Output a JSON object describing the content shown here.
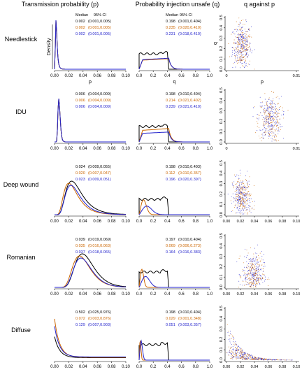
{
  "column_titles": [
    "Transmission probability (p)",
    "Probability injection unsafe (q)",
    "q against p"
  ],
  "row_labels": [
    "Needlestick",
    "IDU",
    "Deep wound",
    "Romanian",
    "Diffuse"
  ],
  "stats_headers": {
    "median": "Median",
    "ci": "95% CI"
  },
  "colors": {
    "black": "#000000",
    "orange": "#cc6600",
    "blue": "#2222cc"
  },
  "chart_data": {
    "type": "line",
    "description_free": true,
    "axes": {
      "p": {
        "label": "p",
        "ticks": [
          "0.00",
          "0.02",
          "0.04",
          "0.06",
          "0.08",
          "0.10"
        ],
        "range": [
          0,
          0.1
        ]
      },
      "q": {
        "label": "q",
        "ticks": [
          "0.0",
          "0.2",
          "0.4",
          "0.6",
          "0.8",
          "1.0"
        ],
        "range": [
          0,
          1.0
        ]
      },
      "q_scatter_y": {
        "ticks": [
          "0.0",
          "0.1",
          "0.2",
          "0.3",
          "0.4",
          "0.5"
        ],
        "range": [
          0,
          0.5
        ]
      },
      "p_scatter_x_short": {
        "ticks": [
          "0",
          "0.01"
        ],
        "range": [
          0,
          0.01
        ]
      },
      "p_scatter_x_long": {
        "ticks": [
          "0.00",
          "0.02",
          "0.04",
          "0.06",
          "0.08",
          "0.10"
        ],
        "range": [
          0,
          0.1
        ]
      },
      "density_label": "Density"
    },
    "rows": [
      {
        "name": "Needlestick",
        "p_axis_labels": true,
        "p_stats": [
          {
            "color": "black",
            "median": "0.002",
            "ci": "(0.001,0.005)"
          },
          {
            "color": "orange",
            "median": "0.002",
            "ci": "(0.001,0.005)"
          },
          {
            "color": "blue",
            "median": "0.002",
            "ci": "(0.001,0.005)"
          }
        ],
        "q_stats": [
          {
            "color": "black",
            "median": "0.198",
            "ci": "(0.001,0.404)"
          },
          {
            "color": "orange",
            "median": "0.235",
            "ci": "(0.020,0.410)"
          },
          {
            "color": "blue",
            "median": "0.231",
            "ci": "(0.018,0.410)"
          }
        ],
        "scatter": {
          "x_axis": "short",
          "x_label": "p",
          "y_label": "q",
          "pcenter": 0.0022,
          "pspread": 0.0012,
          "qcenter": 0.22,
          "qspread": 0.11
        }
      },
      {
        "name": "IDU",
        "p_stats": [
          {
            "color": "black",
            "median": "0.006",
            "ci": "(0.004,0.009)"
          },
          {
            "color": "orange",
            "median": "0.006",
            "ci": "(0.004,0.009)"
          },
          {
            "color": "blue",
            "median": "0.006",
            "ci": "(0.004,0.009)"
          }
        ],
        "q_stats": [
          {
            "color": "black",
            "median": "0.198",
            "ci": "(0.010,0.404)"
          },
          {
            "color": "orange",
            "median": "0.214",
            "ci": "(0.021,0.402)"
          },
          {
            "color": "blue",
            "median": "0.239",
            "ci": "(0.021,0.410)"
          }
        ],
        "scatter": {
          "x_axis": "short",
          "pcenter": 0.0062,
          "pspread": 0.0015,
          "qcenter": 0.22,
          "qspread": 0.11
        }
      },
      {
        "name": "Deep wound",
        "p_stats": [
          {
            "color": "black",
            "median": "0.024",
            "ci": "(0.009,0.055)"
          },
          {
            "color": "orange",
            "median": "0.020",
            "ci": "(0.007,0.047)"
          },
          {
            "color": "blue",
            "median": "0.023",
            "ci": "(0.009,0.051)"
          }
        ],
        "q_stats": [
          {
            "color": "black",
            "median": "0.198",
            "ci": "(0.010,0.403)"
          },
          {
            "color": "orange",
            "median": "0.112",
            "ci": "(0.010,0.357)"
          },
          {
            "color": "blue",
            "median": "0.196",
            "ci": "(0.020,0.397)"
          }
        ],
        "scatter": {
          "x_axis": "long",
          "pcenter": 0.022,
          "pspread": 0.012,
          "qcenter": 0.16,
          "qspread": 0.1
        }
      },
      {
        "name": "Romanian",
        "p_stats": [
          {
            "color": "black",
            "median": "0.039",
            "ci": "(0.019,0.069)"
          },
          {
            "color": "orange",
            "median": "0.035",
            "ci": "(0.016,0.063)"
          },
          {
            "color": "blue",
            "median": "0.037",
            "ci": "(0.018,0.065)"
          }
        ],
        "q_stats": [
          {
            "color": "black",
            "median": "0.197",
            "ci": "(0.010,0.404)"
          },
          {
            "color": "orange",
            "median": "0.069",
            "ci": "(0.006,0.273)"
          },
          {
            "color": "blue",
            "median": "0.164",
            "ci": "(0.016,0.383)"
          }
        ],
        "scatter": {
          "x_axis": "long",
          "pcenter": 0.038,
          "pspread": 0.014,
          "qcenter": 0.12,
          "qspread": 0.1
        }
      },
      {
        "name": "Diffuse",
        "p_stats": [
          {
            "color": "black",
            "median": "0.502",
            "ci": "(0.025,0.976)"
          },
          {
            "color": "orange",
            "median": "0.072",
            "ci": "(0.003,0.876)"
          },
          {
            "color": "blue",
            "median": "0.129",
            "ci": "(0.007,0.903)"
          }
        ],
        "q_stats": [
          {
            "color": "black",
            "median": "0.198",
            "ci": "(0.010,0.404)"
          },
          {
            "color": "orange",
            "median": "0.029",
            "ci": "(0.001,0.348)"
          },
          {
            "color": "blue",
            "median": "0.051",
            "ci": "(0.003,0.357)"
          }
        ],
        "scatter": {
          "x_axis": "long",
          "pcenter": 0.006,
          "pspread": 0.02,
          "qcenter": 0.04,
          "qspread": 0.08,
          "decay": true
        }
      }
    ]
  }
}
